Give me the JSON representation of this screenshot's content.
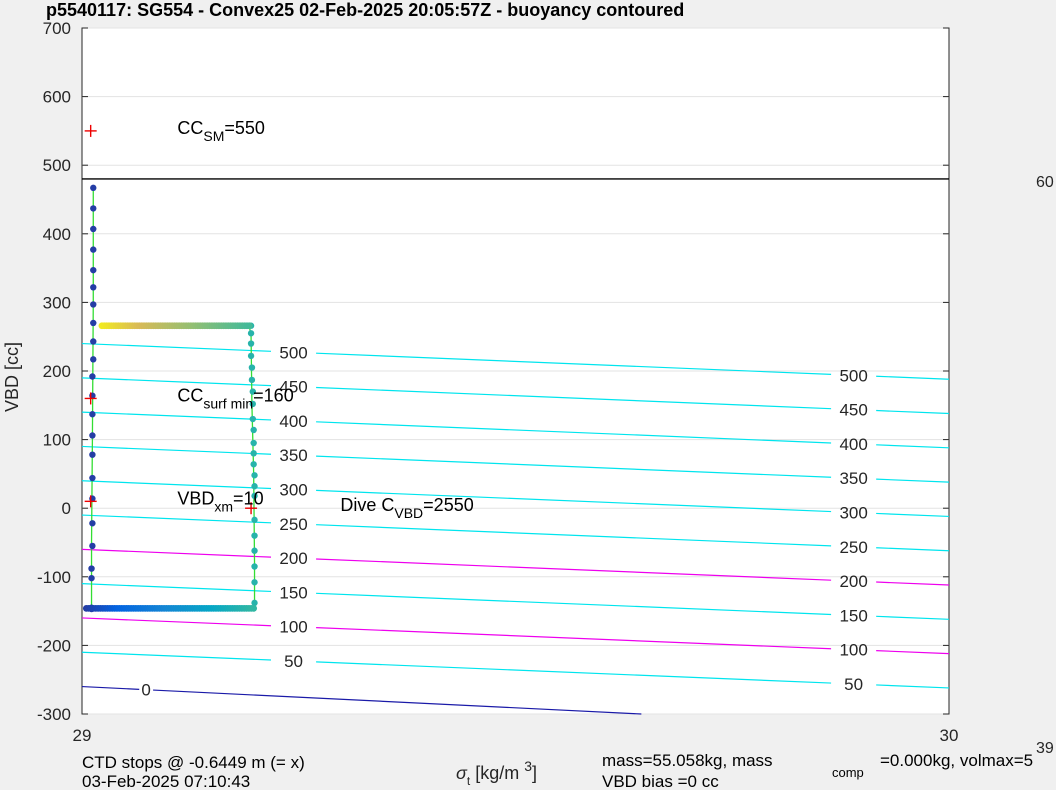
{
  "chart_data": {
    "type": "scatter",
    "title": "p5540117: SG554 - Convex25 02-Feb-2025 20:05:57Z - buoyancy contoured",
    "xlabel": "σt [kg/m 3]",
    "ylabel": "VBD [cc]",
    "xlim": [
      29,
      30
    ],
    "ylim": [
      -300,
      700
    ],
    "xticks": [
      "29",
      "30"
    ],
    "yticks": [
      "-300",
      "-200",
      "-100",
      "0",
      "100",
      "200",
      "300",
      "400",
      "500",
      "600",
      "700"
    ],
    "grid": true,
    "colors": {
      "contour": "#00e5ee",
      "highlight_contour": "#ee00ee",
      "zero_contour": "#1a1aa8",
      "refline": "#000000",
      "marker": "#ee0000",
      "trace": "#33dd33",
      "point": "#332a8c"
    },
    "reference_line": {
      "y": 480
    },
    "contours": [
      {
        "level": "0",
        "highlight": "zero",
        "y_left": -260,
        "y_right": -322
      },
      {
        "level": "50",
        "y_left": -210,
        "y_right": -262
      },
      {
        "level": "100",
        "highlight": "magenta",
        "y_left": -160,
        "y_right": -212
      },
      {
        "level": "150",
        "y_left": -110,
        "y_right": -162
      },
      {
        "level": "200",
        "highlight": "magenta",
        "y_left": -60,
        "y_right": -112
      },
      {
        "level": "250",
        "y_left": -10,
        "y_right": -62
      },
      {
        "level": "300",
        "y_left": 40,
        "y_right": -12
      },
      {
        "level": "350",
        "y_left": 90,
        "y_right": 38
      },
      {
        "level": "400",
        "y_left": 140,
        "y_right": 88
      },
      {
        "level": "450",
        "y_left": 190,
        "y_right": 138
      },
      {
        "level": "500",
        "y_left": 240,
        "y_right": 188
      }
    ],
    "markers": [
      {
        "x": 29.01,
        "y": 550
      },
      {
        "x": 29.01,
        "y": 160
      },
      {
        "x": 29.01,
        "y": 10
      },
      {
        "x": 29.195,
        "y": 0
      }
    ],
    "annotations": [
      {
        "main": "CC",
        "sub": "SM",
        "tail": "=550",
        "x": 29.11,
        "y": 550
      },
      {
        "main": "CC",
        "sub": "surf min",
        "tail": "=160",
        "x": 29.11,
        "y": 160
      },
      {
        "main": "VBD",
        "sub": "xm",
        "tail": "=10",
        "x": 29.11,
        "y": 10
      },
      {
        "main": "Dive C",
        "sub": "VBD",
        "tail": "=2550",
        "x": 29.298,
        "y": 0
      }
    ],
    "series": [
      {
        "style": "scatter",
        "colormap": "parula",
        "x": [
          29.013,
          29.013,
          29.013,
          29.013,
          29.013,
          29.013,
          29.013,
          29.013,
          29.013,
          29.013,
          29.012,
          29.012,
          29.012,
          29.012,
          29.012,
          29.012,
          29.012,
          29.012,
          29.012,
          29.011,
          29.011,
          29.011,
          29.011
        ],
        "y": [
          467,
          437,
          407,
          377,
          347,
          322,
          297,
          270,
          243,
          217,
          192,
          164,
          137,
          106,
          78,
          44,
          14,
          -22,
          -55,
          -88,
          -102,
          -145,
          -147
        ],
        "c": [
          0.05,
          0.05,
          0.05,
          0.05,
          0.05,
          0.05,
          0.05,
          0.05,
          0.05,
          0.05,
          0.05,
          0.05,
          0.05,
          0.05,
          0.05,
          0.05,
          0.05,
          0.05,
          0.05,
          0.05,
          0.05,
          0.05,
          0.05
        ]
      },
      {
        "style": "scatter",
        "colormap": "parula",
        "x": [
          29.195,
          29.195,
          29.195,
          29.195,
          29.196,
          29.196,
          29.197,
          29.197,
          29.197,
          29.198,
          29.198,
          29.198,
          29.198,
          29.199,
          29.199,
          29.199,
          29.199,
          29.199,
          29.199,
          29.199,
          29.199,
          29.199
        ],
        "y": [
          266,
          255,
          240,
          222,
          205,
          187,
          170,
          152,
          130,
          114,
          95,
          80,
          64,
          48,
          32,
          18,
          -17,
          -40,
          -62,
          -85,
          -108,
          -138
        ],
        "c": [
          0.55,
          0.55,
          0.55,
          0.55,
          0.55,
          0.55,
          0.55,
          0.55,
          0.55,
          0.55,
          0.55,
          0.55,
          0.55,
          0.55,
          0.55,
          0.55,
          0.55,
          0.55,
          0.55,
          0.55,
          0.55,
          0.55
        ]
      },
      {
        "style": "band",
        "colormap": "parula",
        "x_from": 29.023,
        "x_to": 29.193,
        "y": 266,
        "c_from": 0.97,
        "c_to": 0.62,
        "n": 64
      },
      {
        "style": "band",
        "colormap": "parula",
        "x_from": 29.005,
        "x_to": 29.198,
        "y": -146,
        "c_from": 0.05,
        "c_to": 0.58,
        "n": 72
      }
    ],
    "connector_traces": [
      {
        "x": [
          29.013,
          29.013,
          29.012,
          29.011,
          29.011,
          29.011
        ],
        "y": [
          467,
          300,
          100,
          -50,
          -120,
          -147
        ]
      },
      {
        "x": [
          29.193,
          29.195,
          29.196,
          29.198,
          29.199,
          29.199
        ],
        "y": [
          266,
          250,
          150,
          50,
          -80,
          -146
        ]
      }
    ],
    "footer": {
      "stops_line1": "CTD stops @ -0.6449 m (= x)",
      "stops_line2": "03-Feb-2025 07:10:43",
      "mass_line1_a": "mass=55.058kg, mass",
      "mass_sub": "comp",
      "mass_line1_b": "=0.000kg, volmax=5",
      "mass_line2": "VBD bias =0 cc"
    },
    "right_axis": {
      "tick_upper": "60",
      "tick_lower": "39"
    }
  }
}
